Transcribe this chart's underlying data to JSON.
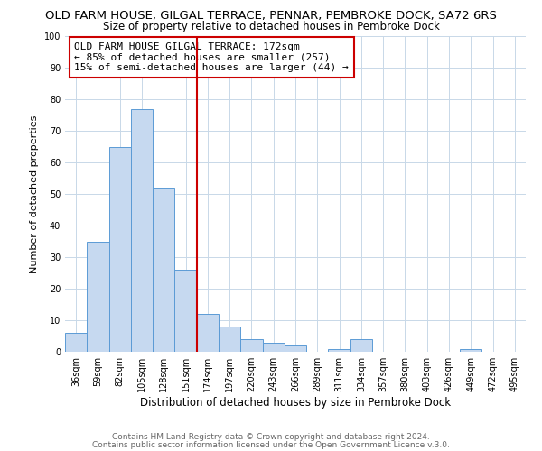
{
  "title1": "OLD FARM HOUSE, GILGAL TERRACE, PENNAR, PEMBROKE DOCK, SA72 6RS",
  "title2": "Size of property relative to detached houses in Pembroke Dock",
  "xlabel": "Distribution of detached houses by size in Pembroke Dock",
  "ylabel": "Number of detached properties",
  "bin_labels": [
    "36sqm",
    "59sqm",
    "82sqm",
    "105sqm",
    "128sqm",
    "151sqm",
    "174sqm",
    "197sqm",
    "220sqm",
    "243sqm",
    "266sqm",
    "289sqm",
    "311sqm",
    "334sqm",
    "357sqm",
    "380sqm",
    "403sqm",
    "426sqm",
    "449sqm",
    "472sqm",
    "495sqm"
  ],
  "bar_values": [
    6,
    35,
    65,
    77,
    52,
    26,
    12,
    8,
    4,
    3,
    2,
    0,
    1,
    4,
    0,
    0,
    0,
    0,
    1,
    0,
    0
  ],
  "bar_color": "#c6d9f0",
  "bar_edge_color": "#5b9bd5",
  "vline_color": "#cc0000",
  "annotation_lines": [
    "OLD FARM HOUSE GILGAL TERRACE: 172sqm",
    "← 85% of detached houses are smaller (257)",
    "15% of semi-detached houses are larger (44) →"
  ],
  "footer1": "Contains HM Land Registry data © Crown copyright and database right 2024.",
  "footer2": "Contains public sector information licensed under the Open Government Licence v.3.0.",
  "ylim": [
    0,
    100
  ],
  "background_color": "#ffffff",
  "grid_color": "#c8d8e8",
  "title1_fontsize": 9.5,
  "title2_fontsize": 8.5,
  "xlabel_fontsize": 8.5,
  "ylabel_fontsize": 8.0,
  "tick_fontsize": 7.0,
  "annotation_fontsize": 8.0,
  "footer_fontsize": 6.5
}
